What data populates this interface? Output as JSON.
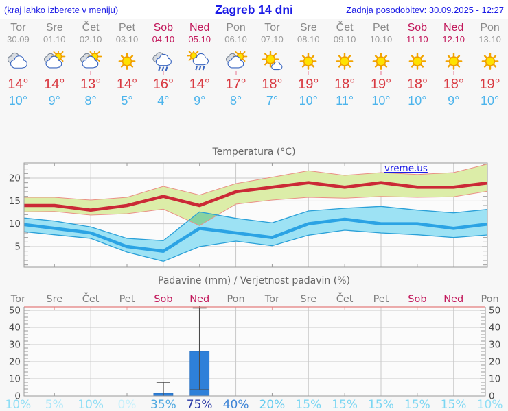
{
  "header": {
    "left": "(kraj lahko izberete v meniju)",
    "title": "Zagreb 14 dni",
    "updated": "Zadnja posodobitev: 30.09.2025 - 12:27"
  },
  "link": {
    "label": "vreme.us"
  },
  "colors": {
    "header_blue": "#1b1be6",
    "day_gray": "#8a8a8a",
    "weekend": "#c2185b",
    "tmax_red": "#d93a42",
    "tmin_blue": "#4cb4ec",
    "tmax_line": "#cb2936",
    "tmax_band_fill": "#dceda8",
    "tmax_band_edge": "#ea8f85",
    "tmin_line": "#2ba3e4",
    "tmin_band_fill": "#9de2f4",
    "tmin_band_edge": "#2aa0d8",
    "bar_blue": "#2e80d9",
    "whisker": "#4a4a4a",
    "grid": "#c9c9c9",
    "axis": "#999999",
    "axis_label": "#4a4a4a",
    "precip_top_border": "#e47c7c",
    "pink_tick": "#e9a0a0"
  },
  "days": [
    {
      "name": "Tor",
      "date": "30.09",
      "weekend": false,
      "icon": "cloudy",
      "tmax": "14°",
      "tmin": "10°",
      "prob": "10%",
      "prob_color": "#8fdef5"
    },
    {
      "name": "Sre",
      "date": "01.10",
      "weekend": false,
      "icon": "partly",
      "tmax": "14°",
      "tmin": "9°",
      "prob": "5%",
      "prob_color": "#abe7f8"
    },
    {
      "name": "Čet",
      "date": "02.10",
      "weekend": false,
      "icon": "partly",
      "tmax": "13°",
      "tmin": "8°",
      "prob": "10%",
      "prob_color": "#8fdef5"
    },
    {
      "name": "Pet",
      "date": "03.10",
      "weekend": false,
      "icon": "sunny",
      "tmax": "14°",
      "tmin": "5°",
      "prob": "0%",
      "prob_color": "#c6f0fb"
    },
    {
      "name": "Sob",
      "date": "04.10",
      "weekend": true,
      "icon": "rain",
      "tmax": "16°",
      "tmin": "4°",
      "prob": "35%",
      "prob_color": "#4fa8e0"
    },
    {
      "name": "Ned",
      "date": "05.10",
      "weekend": true,
      "icon": "sun_rain",
      "tmax": "14°",
      "tmin": "9°",
      "prob": "75%",
      "prob_color": "#2b3ba6"
    },
    {
      "name": "Pon",
      "date": "06.10",
      "weekend": false,
      "icon": "partly",
      "tmax": "17°",
      "tmin": "8°",
      "prob": "40%",
      "prob_color": "#3f85d6"
    },
    {
      "name": "Tor",
      "date": "07.10",
      "weekend": false,
      "icon": "sun_cloud",
      "tmax": "18°",
      "tmin": "7°",
      "prob": "20%",
      "prob_color": "#63cbee"
    },
    {
      "name": "Sre",
      "date": "08.10",
      "weekend": false,
      "icon": "sunny",
      "tmax": "19°",
      "tmin": "10°",
      "prob": "15%",
      "prob_color": "#7cd6f2"
    },
    {
      "name": "Čet",
      "date": "09.10",
      "weekend": false,
      "icon": "sunny",
      "tmax": "18°",
      "tmin": "11°",
      "prob": "15%",
      "prob_color": "#7cd6f2"
    },
    {
      "name": "Pet",
      "date": "10.10",
      "weekend": false,
      "icon": "sunny",
      "tmax": "19°",
      "tmin": "10°",
      "prob": "15%",
      "prob_color": "#7cd6f2"
    },
    {
      "name": "Sob",
      "date": "11.10",
      "weekend": true,
      "icon": "sunny",
      "tmax": "18°",
      "tmin": "10°",
      "prob": "15%",
      "prob_color": "#7cd6f2"
    },
    {
      "name": "Ned",
      "date": "12.10",
      "weekend": true,
      "icon": "sunny",
      "tmax": "18°",
      "tmin": "9°",
      "prob": "15%",
      "prob_color": "#7cd6f2"
    },
    {
      "name": "Pon",
      "date": "13.10",
      "weekend": false,
      "icon": "sunny",
      "tmax": "19°",
      "tmin": "10°",
      "prob": "10%",
      "prob_color": "#8fdef5"
    }
  ],
  "chart_data": [
    {
      "type": "line",
      "title": "Temperatura (°C)",
      "categories": [
        "Tor",
        "Sre",
        "Čet",
        "Pet",
        "Sob",
        "Ned",
        "Pon",
        "Tor",
        "Sre",
        "Čet",
        "Pet",
        "Sob",
        "Ned",
        "Pon"
      ],
      "ylim": [
        0,
        24
      ],
      "yticks": [
        5,
        10,
        15,
        20
      ],
      "grid": true,
      "series": [
        {
          "name": "tmax",
          "color": "#cb2936",
          "values": [
            14,
            14,
            13,
            14,
            16,
            14,
            17,
            18,
            19,
            18,
            19,
            18,
            18,
            19
          ]
        },
        {
          "name": "tmax_range_upper",
          "color": "#dceda8",
          "values": [
            15.8,
            15.8,
            15.2,
            15.8,
            18.2,
            16.3,
            18.8,
            20.2,
            21.6,
            20.6,
            21.2,
            20.8,
            21.2,
            23.2
          ]
        },
        {
          "name": "tmax_range_lower",
          "color": "#dceda8",
          "values": [
            12.6,
            12.7,
            11.9,
            12.2,
            13.2,
            9.6,
            14.3,
            15.2,
            15.8,
            15.6,
            16.0,
            15.8,
            15.9,
            17.2
          ]
        },
        {
          "name": "tmin",
          "color": "#2ba3e4",
          "values": [
            10,
            9,
            8,
            5,
            4,
            9,
            8,
            7,
            10,
            11,
            10,
            10,
            9,
            10
          ]
        },
        {
          "name": "tmin_range_upper",
          "color": "#9de2f4",
          "values": [
            11.4,
            10.6,
            9.3,
            6.8,
            6.3,
            12.6,
            11.2,
            10.2,
            12.8,
            13.4,
            13.8,
            13.0,
            12.4,
            13.2
          ]
        },
        {
          "name": "tmin_range_lower",
          "color": "#9de2f4",
          "values": [
            8.4,
            7.6,
            6.8,
            3.8,
            1.8,
            5.0,
            6.2,
            5.2,
            7.5,
            8.6,
            8.0,
            7.6,
            7.0,
            7.6
          ]
        }
      ]
    },
    {
      "type": "bar",
      "title": "Padavine (mm) / Verjetnost padavin (%)",
      "categories": [
        "Tor",
        "Sre",
        "Čet",
        "Pet",
        "Sob",
        "Ned",
        "Pon",
        "Tor",
        "Sre",
        "Čet",
        "Pet",
        "Sob",
        "Ned",
        "Pon"
      ],
      "values": [
        0,
        0,
        0,
        0,
        1.5,
        26,
        0,
        0,
        0,
        0,
        0,
        0,
        0,
        0
      ],
      "whiskers": [
        {
          "index": 4,
          "low": 0,
          "high": 8
        },
        {
          "index": 5,
          "low": 3.5,
          "high": 52
        }
      ],
      "probabilities": [
        "10%",
        "5%",
        "10%",
        "0%",
        "35%",
        "75%",
        "40%",
        "20%",
        "15%",
        "15%",
        "15%",
        "15%",
        "15%",
        "10%"
      ],
      "ylim": [
        0,
        52
      ],
      "yticks": [
        0,
        10,
        20,
        30,
        40,
        50
      ],
      "grid": true
    }
  ]
}
